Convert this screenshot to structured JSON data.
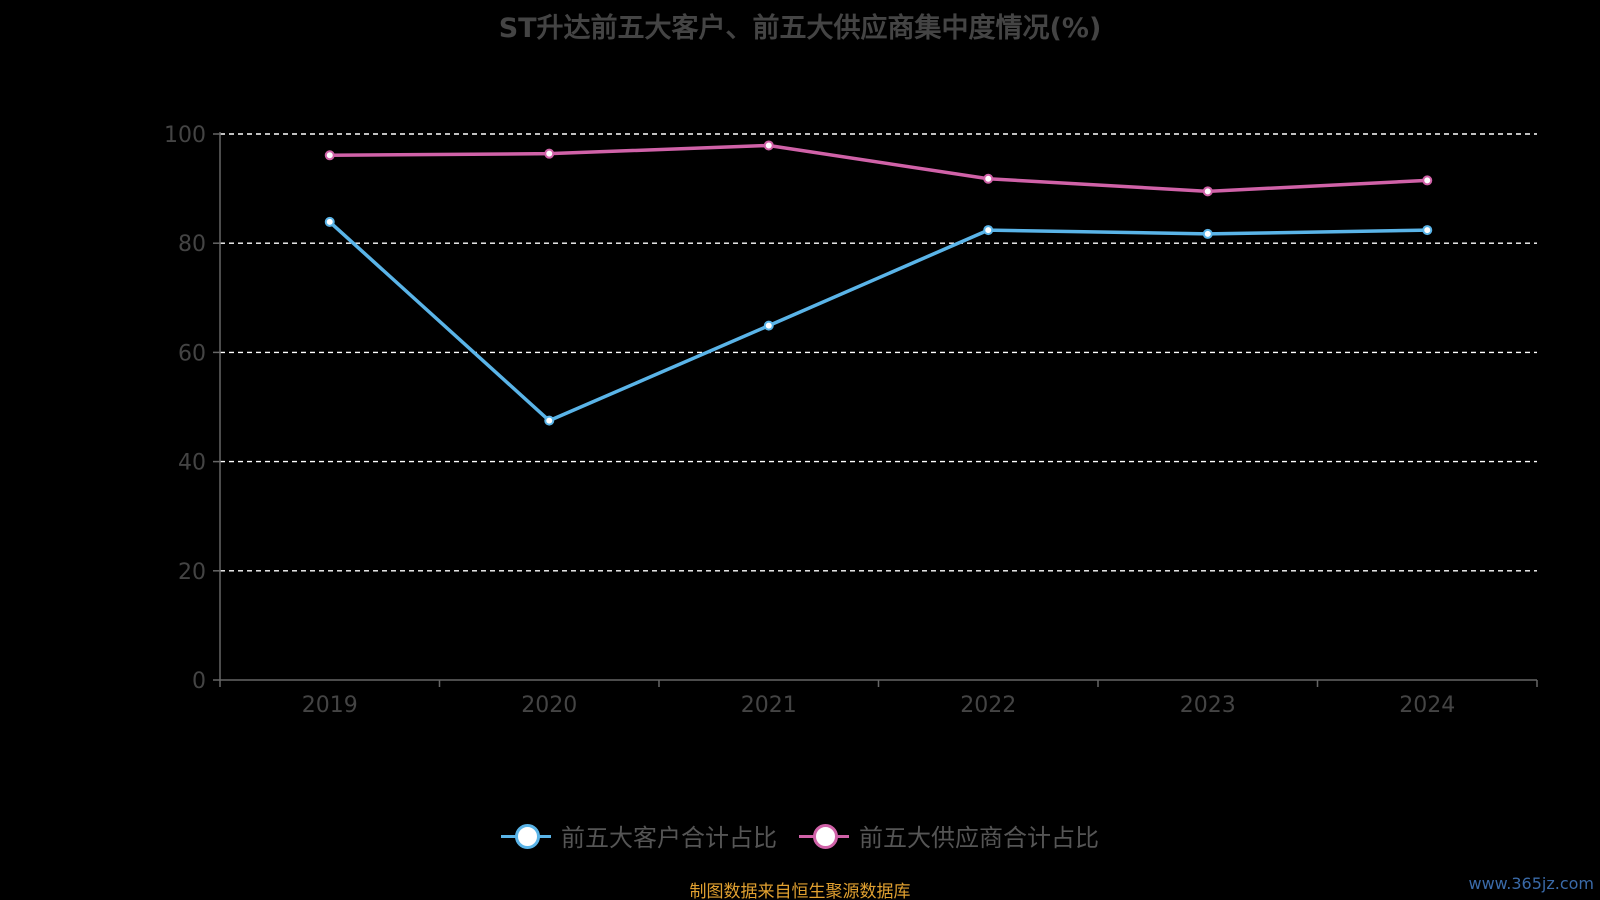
{
  "title": "ST升达前五大客户、前五大供应商集中度情况(%)",
  "source_note": "制图数据来自恒生聚源数据库",
  "watermark": "www.365jz.com",
  "legend": [
    {
      "label": "前五大客户合计占比",
      "color": "#5ab4e8"
    },
    {
      "label": "前五大供应商合计占比",
      "color": "#d062a8"
    }
  ],
  "chart_data": {
    "type": "line",
    "title": "ST升达前五大客户、前五大供应商集中度情况(%)",
    "categories": [
      "2019",
      "2020",
      "2021",
      "2022",
      "2023",
      "2024"
    ],
    "y_ticks": [
      "0",
      "20",
      "40",
      "60",
      "80",
      "100"
    ],
    "ylim": [
      0,
      100
    ],
    "grid": true,
    "legend_position": "bottom",
    "series": [
      {
        "name": "前五大客户合计占比",
        "color": "#5ab4e8",
        "values": [
          83.9,
          47.5,
          64.9,
          82.4,
          81.7,
          82.4
        ]
      },
      {
        "name": "前五大供应商合计占比",
        "color": "#d062a8",
        "values": [
          96.1,
          96.4,
          97.9,
          91.8,
          89.5,
          91.5
        ]
      }
    ]
  }
}
